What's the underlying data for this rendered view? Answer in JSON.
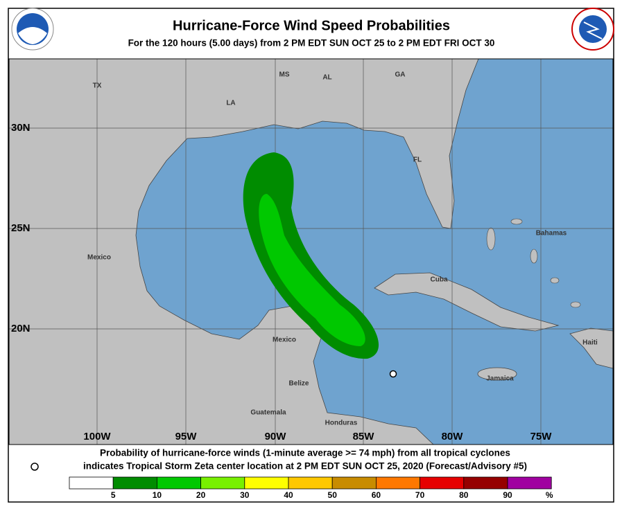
{
  "header": {
    "title": "Hurricane-Force Wind Speed Probabilities",
    "subtitle": "For the 120 hours (5.00 days) from 2 PM EDT SUN OCT 25 to 2 PM EDT FRI OCT 30"
  },
  "map": {
    "region_labels": [
      "TX",
      "LA",
      "MS",
      "AL",
      "GA",
      "FL",
      "Mexico",
      "Bahamas",
      "Cuba",
      "Mexico",
      "Belize",
      "Guatemala",
      "Honduras",
      "Jamaica",
      "Haiti"
    ],
    "lat_labels": [
      "30N",
      "25N",
      "20N"
    ],
    "lon_labels": [
      "100W",
      "95W",
      "90W",
      "85W",
      "80W",
      "75W"
    ]
  },
  "footer": {
    "line1": "Probability of hurricane-force winds (1-minute average >= 74 mph) from all tropical cyclones",
    "line2": "indicates Tropical Storm Zeta center location at 2 PM EDT SUN OCT 25, 2020 (Forecast/Advisory #5)"
  },
  "legend": {
    "colors": [
      "#ffffff",
      "#008c00",
      "#00c800",
      "#78f000",
      "#ffff00",
      "#ffc800",
      "#c88c00",
      "#ff7800",
      "#e60000",
      "#960000",
      "#a000a0"
    ],
    "labels": [
      "5",
      "10",
      "20",
      "30",
      "40",
      "50",
      "60",
      "70",
      "80",
      "90",
      "%"
    ]
  }
}
